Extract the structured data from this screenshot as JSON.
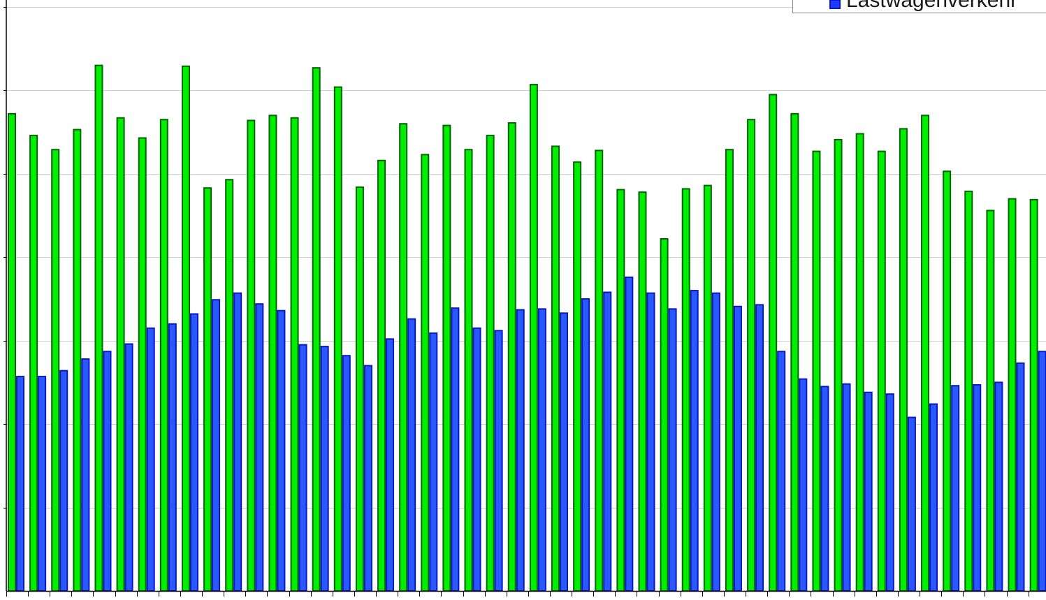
{
  "chart_data": {
    "type": "bar",
    "title": "",
    "xlabel": "",
    "ylabel": "",
    "ylim": [
      0,
      7
    ],
    "grid": true,
    "legend_position": "top-right",
    "series": [
      {
        "color": "#00ee00",
        "edge_color": "#006600",
        "values": [
          5.72,
          5.46,
          5.29,
          5.53,
          6.3,
          5.67,
          5.43,
          5.65,
          6.29,
          4.83,
          4.93,
          5.64,
          5.7,
          5.67,
          6.27,
          6.04,
          4.84,
          5.16,
          5.6,
          5.23,
          5.58,
          5.29,
          5.46,
          5.61,
          6.07,
          5.33,
          5.14,
          5.28,
          4.81,
          4.78,
          4.22,
          4.82,
          4.86,
          5.29,
          5.65,
          5.95,
          5.72,
          5.27,
          5.41,
          5.48,
          5.27,
          5.54,
          5.7,
          5.03,
          4.79,
          4.56,
          4.7,
          4.69
        ]
      },
      {
        "name": "Lastwagenverkehr",
        "color": "#2a58ff",
        "edge_color": "#0a18c8",
        "values": [
          2.57,
          2.57,
          2.64,
          2.78,
          2.87,
          2.96,
          3.15,
          3.2,
          3.32,
          3.49,
          3.57,
          3.44,
          3.36,
          2.95,
          2.93,
          2.82,
          2.7,
          3.02,
          3.26,
          3.09,
          3.39,
          3.15,
          3.12,
          3.37,
          3.38,
          3.33,
          3.5,
          3.58,
          3.76,
          3.57,
          3.38,
          3.6,
          3.57,
          3.41,
          3.43,
          2.87,
          2.54,
          2.45,
          2.48,
          2.38,
          2.36,
          2.08,
          2.24,
          2.46,
          2.47,
          2.5,
          2.73,
          2.87
        ]
      }
    ]
  }
}
